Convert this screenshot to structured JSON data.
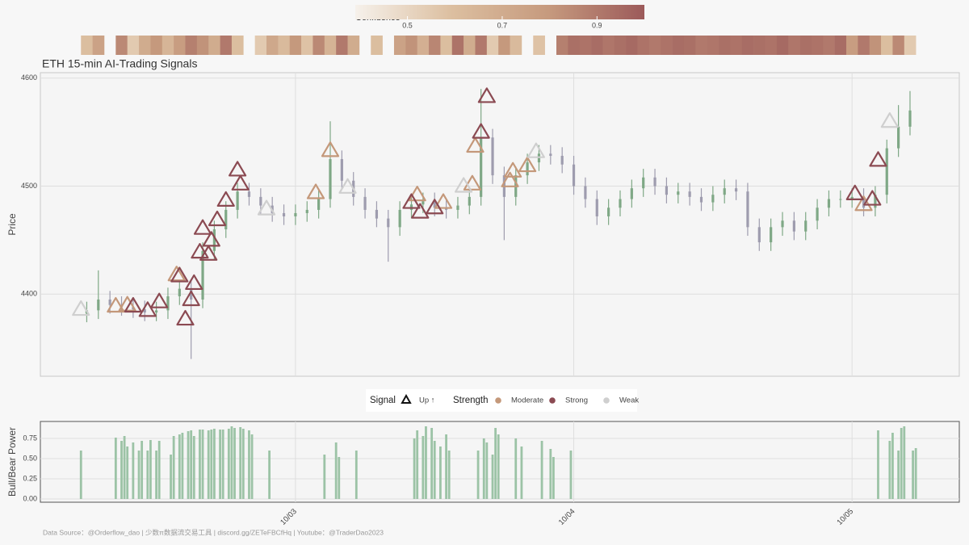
{
  "chart_data": [
    {
      "type": "candlestick",
      "title": "ETH 15-min AI-Trading Signals",
      "ylabel": "Price",
      "caption": "Data Source：@Orderflow_dao | 少数π数据流交易工具 | discord.gg/ZETeFBCfHq | Youtube：@TraderDao2023",
      "xlim": [
        -88,
        229
      ],
      "ylim": [
        4324,
        4605
      ],
      "yticks": [
        4400,
        4500,
        4600
      ],
      "grid": true,
      "legend": {
        "signal_title": "Signal",
        "signal_label": "Up ↑",
        "strength_title": "Strength"
      },
      "candles": {
        "up_color": "#7fa886",
        "down_color": "#9e9cae",
        "x": [
          -72,
          -68,
          -64,
          -60,
          -56,
          -52,
          -48,
          -44,
          -40,
          -36,
          -32,
          -28,
          -24,
          -20,
          -16,
          -12,
          -8,
          -4,
          0,
          4,
          8,
          12,
          16,
          20,
          24,
          28,
          32,
          36,
          40,
          44,
          48,
          52,
          56,
          60,
          64,
          68,
          72,
          76,
          80,
          84,
          88,
          92,
          96,
          100,
          104,
          108,
          112,
          116,
          120,
          124,
          128,
          132,
          136,
          140,
          144,
          148,
          152,
          156,
          160,
          164,
          168,
          172,
          176,
          180,
          184,
          188,
          192,
          196,
          200,
          204,
          208,
          212
        ],
        "open": [
          4382,
          4385,
          4395,
          4390,
          4388,
          4386,
          4383,
          4385,
          4398,
          4405,
          4395,
          4440,
          4460,
          4478,
          4495,
          4490,
          4482,
          4475,
          4472,
          4475,
          4478,
          4488,
          4525,
          4505,
          4490,
          4478,
          4470,
          4462,
          4478,
          4483,
          4486,
          4480,
          4478,
          4482,
          4490,
          4545,
          4510,
          4490,
          4510,
          4522,
          4530,
          4528,
          4520,
          4500,
          4488,
          4472,
          4480,
          4488,
          4498,
          4508,
          4500,
          4492,
          4495,
          4490,
          4485,
          4492,
          4498,
          4495,
          4462,
          4448,
          4462,
          4468,
          4458,
          4468,
          4480,
          4488,
          4488,
          4490,
          4480,
          4492,
          4535,
          4555
        ],
        "high": [
          4393,
          4422,
          4403,
          4398,
          4396,
          4394,
          4393,
          4406,
          4413,
          4413,
          4448,
          4468,
          4486,
          4503,
          4503,
          4498,
          4490,
          4483,
          4483,
          4486,
          4496,
          4560,
          4533,
          4513,
          4498,
          4486,
          4478,
          4486,
          4491,
          4494,
          4494,
          4488,
          4490,
          4498,
          4590,
          4553,
          4518,
          4518,
          4530,
          4538,
          4538,
          4536,
          4528,
          4508,
          4496,
          4488,
          4496,
          4506,
          4516,
          4516,
          4508,
          4503,
          4503,
          4498,
          4500,
          4506,
          4506,
          4503,
          4470,
          4470,
          4476,
          4476,
          4476,
          4488,
          4496,
          4496,
          4498,
          4498,
          4500,
          4543,
          4575,
          4588
        ],
        "low": [
          4374,
          4377,
          4382,
          4380,
          4378,
          4375,
          4375,
          4377,
          4390,
          4340,
          4387,
          4432,
          4452,
          4470,
          4482,
          4474,
          4467,
          4464,
          4464,
          4467,
          4470,
          4480,
          4497,
          4482,
          4470,
          4462,
          4430,
          4454,
          4470,
          4475,
          4472,
          4470,
          4470,
          4474,
          4482,
          4502,
          4450,
          4482,
          4502,
          4514,
          4520,
          4512,
          4492,
          4480,
          4464,
          4464,
          4472,
          4480,
          4490,
          4492,
          4484,
          4484,
          4482,
          4477,
          4477,
          4484,
          4487,
          4454,
          4440,
          4440,
          4454,
          4450,
          4450,
          4460,
          4472,
          4480,
          4480,
          4472,
          4472,
          4484,
          4527,
          4547
        ],
        "close": [
          4385,
          4395,
          4390,
          4388,
          4386,
          4383,
          4385,
          4398,
          4405,
          4395,
          4440,
          4460,
          4478,
          4495,
          4490,
          4482,
          4475,
          4472,
          4475,
          4478,
          4488,
          4525,
          4505,
          4490,
          4478,
          4470,
          4462,
          4478,
          4483,
          4486,
          4480,
          4478,
          4482,
          4490,
          4545,
          4510,
          4490,
          4510,
          4522,
          4530,
          4528,
          4520,
          4500,
          4488,
          4472,
          4480,
          4488,
          4498,
          4508,
          4500,
          4492,
          4495,
          4490,
          4485,
          4492,
          4498,
          4495,
          4462,
          4448,
          4462,
          4468,
          4458,
          4468,
          4480,
          4488,
          4488,
          4490,
          4480,
          4492,
          4535,
          4555,
          4570
        ]
      },
      "series": [
        {
          "name": "Moderate",
          "color": "#c4987a",
          "x": [
            -62,
            -58,
            -41,
            7,
            12,
            42,
            51,
            61,
            62,
            74,
            75,
            80,
            196
          ],
          "values": [
            4389,
            4390,
            4418,
            4494,
            4533,
            4492,
            4485,
            4502,
            4537,
            4505,
            4514,
            4519,
            4483
          ]
        },
        {
          "name": "Strong",
          "color": "#8b4a52",
          "x": [
            -56,
            -51,
            -47,
            -40,
            -38,
            -36,
            -35,
            -33,
            -32,
            -30,
            -29,
            -27,
            -24,
            -20,
            -19,
            40,
            43,
            48,
            64,
            66,
            193,
            199,
            201
          ],
          "values": [
            4389,
            4385,
            4393,
            4417,
            4377,
            4395,
            4410,
            4439,
            4461,
            4437,
            4450,
            4469,
            4487,
            4515,
            4502,
            4485,
            4476,
            4480,
            4550,
            4583,
            4493,
            4488,
            4524
          ]
        },
        {
          "name": "Weak",
          "color": "#cfcfcf",
          "x": [
            -74,
            -10,
            18,
            58,
            83,
            205
          ],
          "values": [
            4386,
            4479,
            4499,
            4500,
            4532,
            4560
          ]
        }
      ]
    },
    {
      "type": "bar",
      "ylabel": "Bull/Bear Power",
      "color": "#9cc3a6",
      "grid": true,
      "xlim": [
        -88,
        229
      ],
      "ylim": [
        -0.04,
        0.96
      ],
      "xticks": [
        {
          "value": 0,
          "label": "10/03"
        },
        {
          "value": 96,
          "label": "10/04"
        },
        {
          "value": 192,
          "label": "10/05"
        }
      ],
      "yticks": [
        {
          "value": 0,
          "label": "0.00"
        },
        {
          "value": 0.25,
          "label": "0.25"
        },
        {
          "value": 0.5,
          "label": "0.50"
        },
        {
          "value": 0.75,
          "label": "0.75"
        }
      ],
      "x": [
        -74,
        -62,
        -60,
        -59,
        -58,
        -56,
        -54,
        -53,
        -51,
        -50,
        -48,
        -47,
        -43,
        -42,
        -40,
        -39,
        -37,
        -36,
        -35,
        -33,
        -32,
        -30,
        -29,
        -28,
        -26,
        -25,
        -23,
        -22,
        -21,
        -19,
        -18,
        -16,
        -15,
        -9,
        10,
        14,
        15,
        21,
        41,
        42,
        44,
        45,
        47,
        48,
        50,
        52,
        53,
        63,
        65,
        66,
        68,
        69,
        70,
        76,
        78,
        85,
        88,
        89,
        95,
        201,
        205,
        206,
        208,
        209,
        210,
        213,
        214
      ],
      "values": [
        0.6,
        0.76,
        0.72,
        0.78,
        0.65,
        0.7,
        0.6,
        0.72,
        0.6,
        0.73,
        0.6,
        0.72,
        0.55,
        0.78,
        0.8,
        0.82,
        0.84,
        0.85,
        0.78,
        0.86,
        0.86,
        0.85,
        0.86,
        0.87,
        0.86,
        0.86,
        0.87,
        0.9,
        0.88,
        0.89,
        0.87,
        0.85,
        0.8,
        0.6,
        0.55,
        0.7,
        0.52,
        0.6,
        0.75,
        0.85,
        0.78,
        0.9,
        0.88,
        0.72,
        0.65,
        0.8,
        0.6,
        0.6,
        0.75,
        0.7,
        0.55,
        0.88,
        0.8,
        0.75,
        0.65,
        0.72,
        0.62,
        0.52,
        0.6,
        0.85,
        0.72,
        0.82,
        0.6,
        0.88,
        0.9,
        0.6,
        0.63
      ]
    },
    {
      "type": "heatmap",
      "colorbar_title": "Confidence",
      "clim": [
        0.39,
        1.0
      ],
      "cticks": [
        0.5,
        0.7,
        0.9
      ],
      "colormap": [
        "#f6f1eb",
        "#dcbfa0",
        "#c69a7e",
        "#9c5a5a"
      ],
      "xlim": [
        -88,
        229
      ],
      "x": [
        -72,
        -68,
        -64,
        -60,
        -56,
        -52,
        -48,
        -44,
        -40,
        -36,
        -32,
        -28,
        -24,
        -20,
        -16,
        -12,
        -8,
        -4,
        0,
        4,
        8,
        12,
        16,
        20,
        24,
        28,
        32,
        36,
        40,
        44,
        48,
        52,
        56,
        60,
        64,
        68,
        72,
        76,
        80,
        84,
        88,
        92,
        96,
        100,
        104,
        108,
        112,
        116,
        120,
        124,
        128,
        132,
        136,
        140,
        144,
        148,
        152,
        156,
        160,
        164,
        168,
        172,
        176,
        180,
        184,
        188,
        192,
        196,
        200,
        204,
        208,
        212
      ],
      "values": [
        0.6,
        0.75,
        null,
        0.85,
        0.55,
        0.7,
        0.8,
        0.65,
        0.78,
        0.88,
        0.82,
        0.7,
        0.9,
        0.6,
        null,
        0.55,
        0.72,
        0.62,
        0.8,
        0.58,
        0.85,
        0.66,
        0.9,
        0.7,
        null,
        0.6,
        null,
        0.75,
        0.82,
        0.68,
        0.86,
        0.6,
        0.92,
        0.7,
        0.9,
        0.55,
        0.8,
        0.62,
        null,
        0.58,
        null,
        0.88,
        0.93,
        0.92,
        0.94,
        0.91,
        0.93,
        0.95,
        0.92,
        0.9,
        0.92,
        0.94,
        0.93,
        0.9,
        0.91,
        0.93,
        0.92,
        0.94,
        0.93,
        0.92,
        0.95,
        0.91,
        0.93,
        0.92,
        0.9,
        0.94,
        0.78,
        0.9,
        0.82,
        0.6,
        0.85,
        0.55
      ]
    }
  ]
}
